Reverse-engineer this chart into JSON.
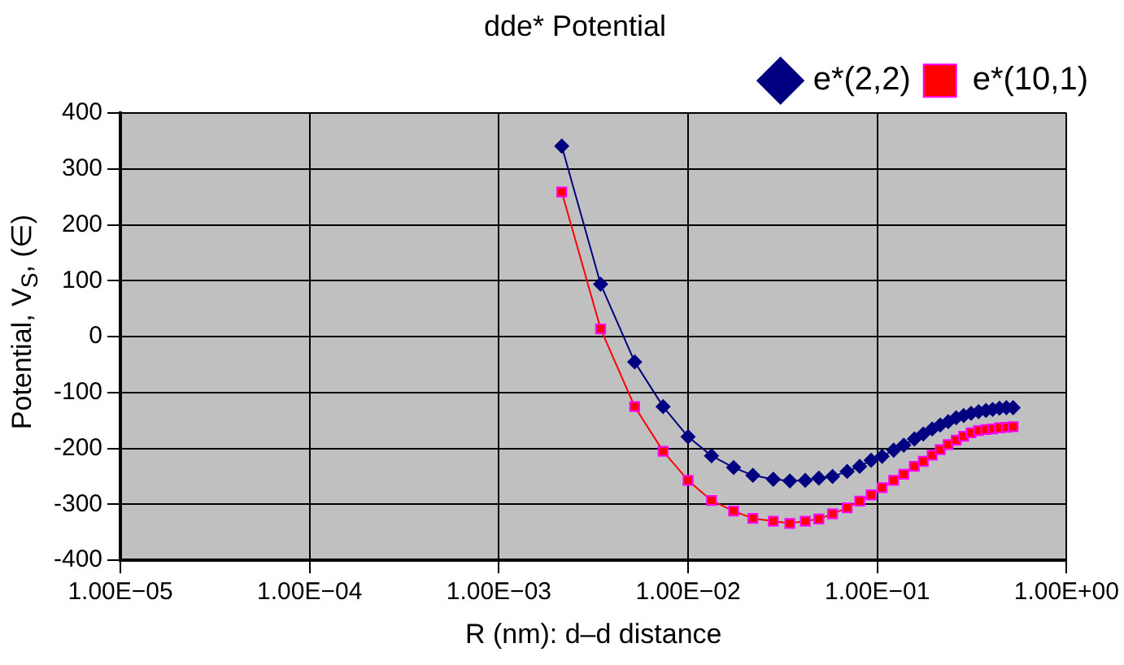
{
  "chart_data": {
    "type": "line",
    "title": "dde* Potential",
    "xlabel": "R (nm): d–d distance",
    "ylabel": "Potential, V$_{S}$, (∈)",
    "log": "x",
    "xlim": [
      1e-05,
      1
    ],
    "xticks": [
      {
        "value": 1e-05,
        "label": "1.00E−05"
      },
      {
        "value": 0.0001,
        "label": "1.00E−04"
      },
      {
        "value": 0.001,
        "label": "1.00E−03"
      },
      {
        "value": 0.01,
        "label": "1.00E−02"
      },
      {
        "value": 0.1,
        "label": "1.00E−01"
      },
      {
        "value": 1,
        "label": "1.00E+00"
      }
    ],
    "ylim": [
      -400,
      400
    ],
    "yticks": [
      -400,
      -300,
      -200,
      -100,
      0,
      100,
      200,
      300,
      400
    ],
    "grid": true,
    "legend": "top right",
    "line_style": "solid",
    "x": [
      0.00215,
      0.00345,
      0.00522,
      0.00738,
      0.01,
      0.0133,
      0.0174,
      0.022,
      0.0282,
      0.0345,
      0.0416,
      0.0491,
      0.058,
      0.0693,
      0.0807,
      0.0927,
      0.106,
      0.122,
      0.138,
      0.157,
      0.175,
      0.195,
      0.215,
      0.237,
      0.261,
      0.286,
      0.313,
      0.343,
      0.375,
      0.407,
      0.442,
      0.481,
      0.522
    ],
    "series": [
      {
        "name": "e*(2,2)",
        "color": "#000080",
        "marker": "diamond",
        "values": [
          341,
          94,
          -45,
          -125,
          -179,
          -213,
          -234,
          -248,
          -255,
          -258,
          -257,
          -253,
          -250,
          -241,
          -232,
          -221,
          -214,
          -203,
          -194,
          -183,
          -174,
          -165,
          -158,
          -152,
          -145,
          -141,
          -137,
          -134,
          -132,
          -130,
          -128,
          -127,
          -127
        ]
      },
      {
        "name": "e*(10,1)",
        "color": "#ff0000",
        "marker": "square",
        "values": [
          259,
          14,
          -125,
          -205,
          -257,
          -293,
          -312,
          -325,
          -330,
          -334,
          -330,
          -326,
          -317,
          -306,
          -294,
          -283,
          -270,
          -257,
          -246,
          -232,
          -223,
          -212,
          -202,
          -193,
          -185,
          -178,
          -172,
          -168,
          -166,
          -165,
          -163,
          -162,
          -161
        ]
      }
    ]
  }
}
